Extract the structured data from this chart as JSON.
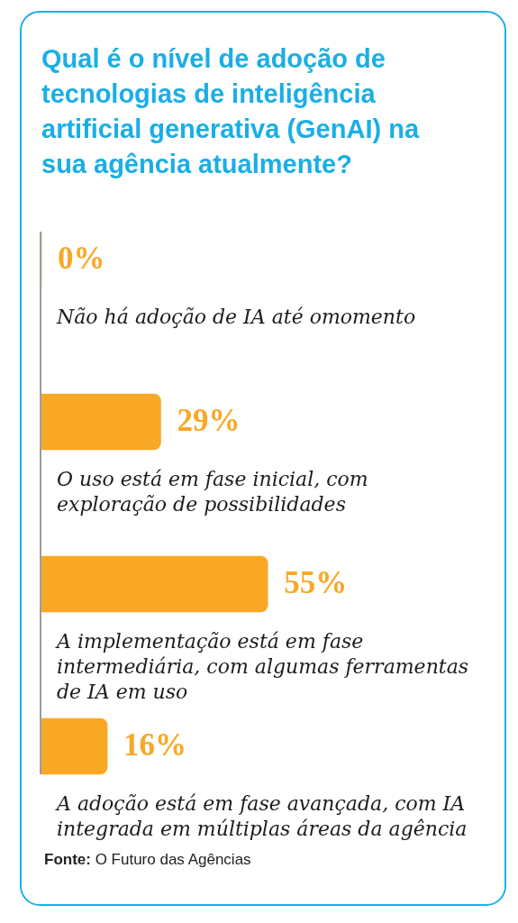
{
  "chart_data": {
    "type": "bar",
    "orientation": "horizontal",
    "title": "Qual é o nível de adoção de tecnologias de inteligência artificial generativa (GenAI) na sua agência atualmente?",
    "categories": [
      "Não há adoção de IA até omomento",
      "O uso está em fase inicial, com exploração de possibilidades",
      "A implementação está em fase intermediária, com algumas ferramentas de IA em uso",
      "A adoção está em fase avançada, com IA integrada em múltiplas áreas da agência"
    ],
    "values": [
      0,
      29,
      55,
      16
    ],
    "value_labels": [
      "0%",
      "29%",
      "55%",
      "16%"
    ],
    "color": "#f9a826",
    "tick_labels": "y",
    "annotations": [
      "Fonte: O Futuro das Agências"
    ]
  }
}
